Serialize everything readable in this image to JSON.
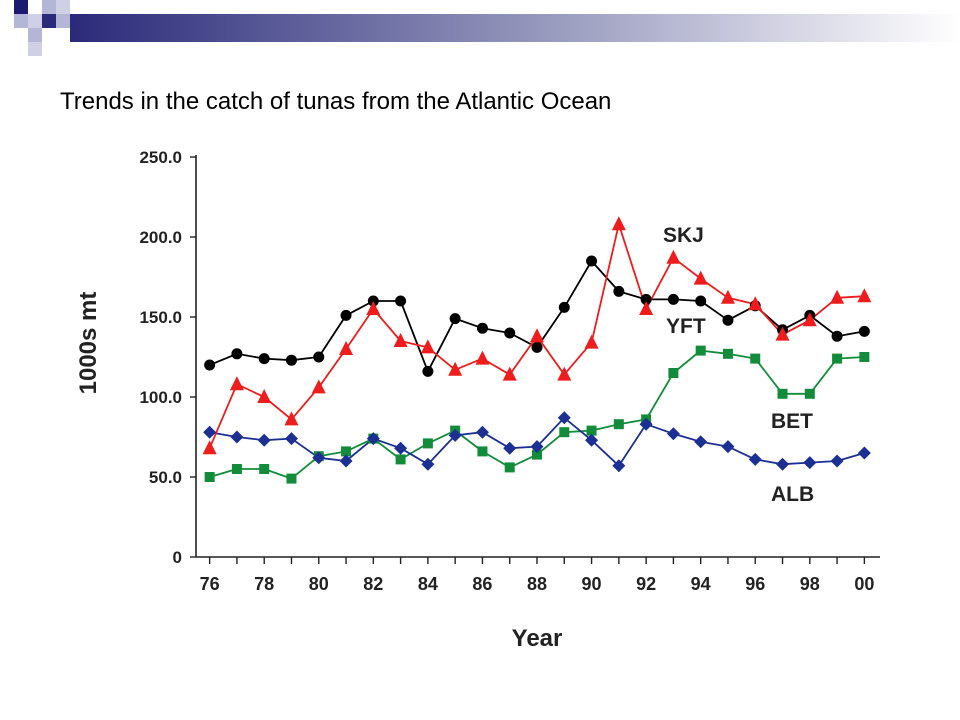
{
  "slide_title": "Trends in the catch of tunas from the Atlantic Ocean",
  "chart_data": {
    "type": "line",
    "title": "",
    "xlabel": "Year",
    "ylabel": "1000s mt",
    "x": [
      1976,
      1977,
      1978,
      1979,
      1980,
      1981,
      1982,
      1983,
      1984,
      1985,
      1986,
      1987,
      1988,
      1989,
      1990,
      1991,
      1992,
      1993,
      1994,
      1995,
      1996,
      1997,
      1998,
      1999,
      2000
    ],
    "xticks": [
      {
        "value": 1976,
        "label": "76"
      },
      {
        "value": 1978,
        "label": "78"
      },
      {
        "value": 1980,
        "label": "80"
      },
      {
        "value": 1982,
        "label": "82"
      },
      {
        "value": 1984,
        "label": "84"
      },
      {
        "value": 1986,
        "label": "86"
      },
      {
        "value": 1988,
        "label": "88"
      },
      {
        "value": 1990,
        "label": "90"
      },
      {
        "value": 1992,
        "label": "92"
      },
      {
        "value": 1994,
        "label": "94"
      },
      {
        "value": 1996,
        "label": "96"
      },
      {
        "value": 1998,
        "label": "98"
      },
      {
        "value": 2000,
        "label": "00"
      }
    ],
    "yticks": [
      {
        "value": 0,
        "label": "0"
      },
      {
        "value": 50,
        "label": "50.0"
      },
      {
        "value": 100,
        "label": "100.0"
      },
      {
        "value": 150,
        "label": "150.0"
      },
      {
        "value": 200,
        "label": "200.0"
      },
      {
        "value": 250,
        "label": "250.0"
      }
    ],
    "xlim": [
      1975.5,
      2000.5
    ],
    "ylim": [
      0,
      250
    ],
    "grid": false,
    "legend": "inline labels",
    "series": [
      {
        "name": "SKJ",
        "color": "#000000",
        "marker": "circle",
        "values": [
          120,
          127,
          124,
          123,
          125,
          151,
          160,
          160,
          116,
          149,
          143,
          140,
          131,
          156,
          185,
          166,
          161,
          161,
          160,
          148,
          157,
          142,
          151,
          138,
          141
        ]
      },
      {
        "name": "YFT",
        "color": "#ee1c1c",
        "marker": "triangle",
        "values": [
          68,
          108,
          100,
          86,
          106,
          130,
          155,
          135,
          131,
          117,
          124,
          114,
          138,
          114,
          134,
          208,
          155,
          187,
          174,
          162,
          158,
          139,
          148,
          162,
          163
        ]
      },
      {
        "name": "BET",
        "color": "#128c3a",
        "marker": "square",
        "values": [
          50,
          55,
          55,
          49,
          63,
          66,
          74,
          61,
          71,
          79,
          66,
          56,
          64,
          78,
          79,
          83,
          86,
          115,
          129,
          127,
          124,
          102,
          102,
          124,
          125
        ]
      },
      {
        "name": "ALB",
        "color": "#1c2f93",
        "marker": "diamond",
        "values": [
          78,
          75,
          73,
          74,
          62,
          60,
          74,
          68,
          58,
          76,
          78,
          68,
          69,
          87,
          73,
          57,
          83,
          77,
          72,
          69,
          61,
          58,
          59,
          60,
          65
        ]
      }
    ]
  }
}
